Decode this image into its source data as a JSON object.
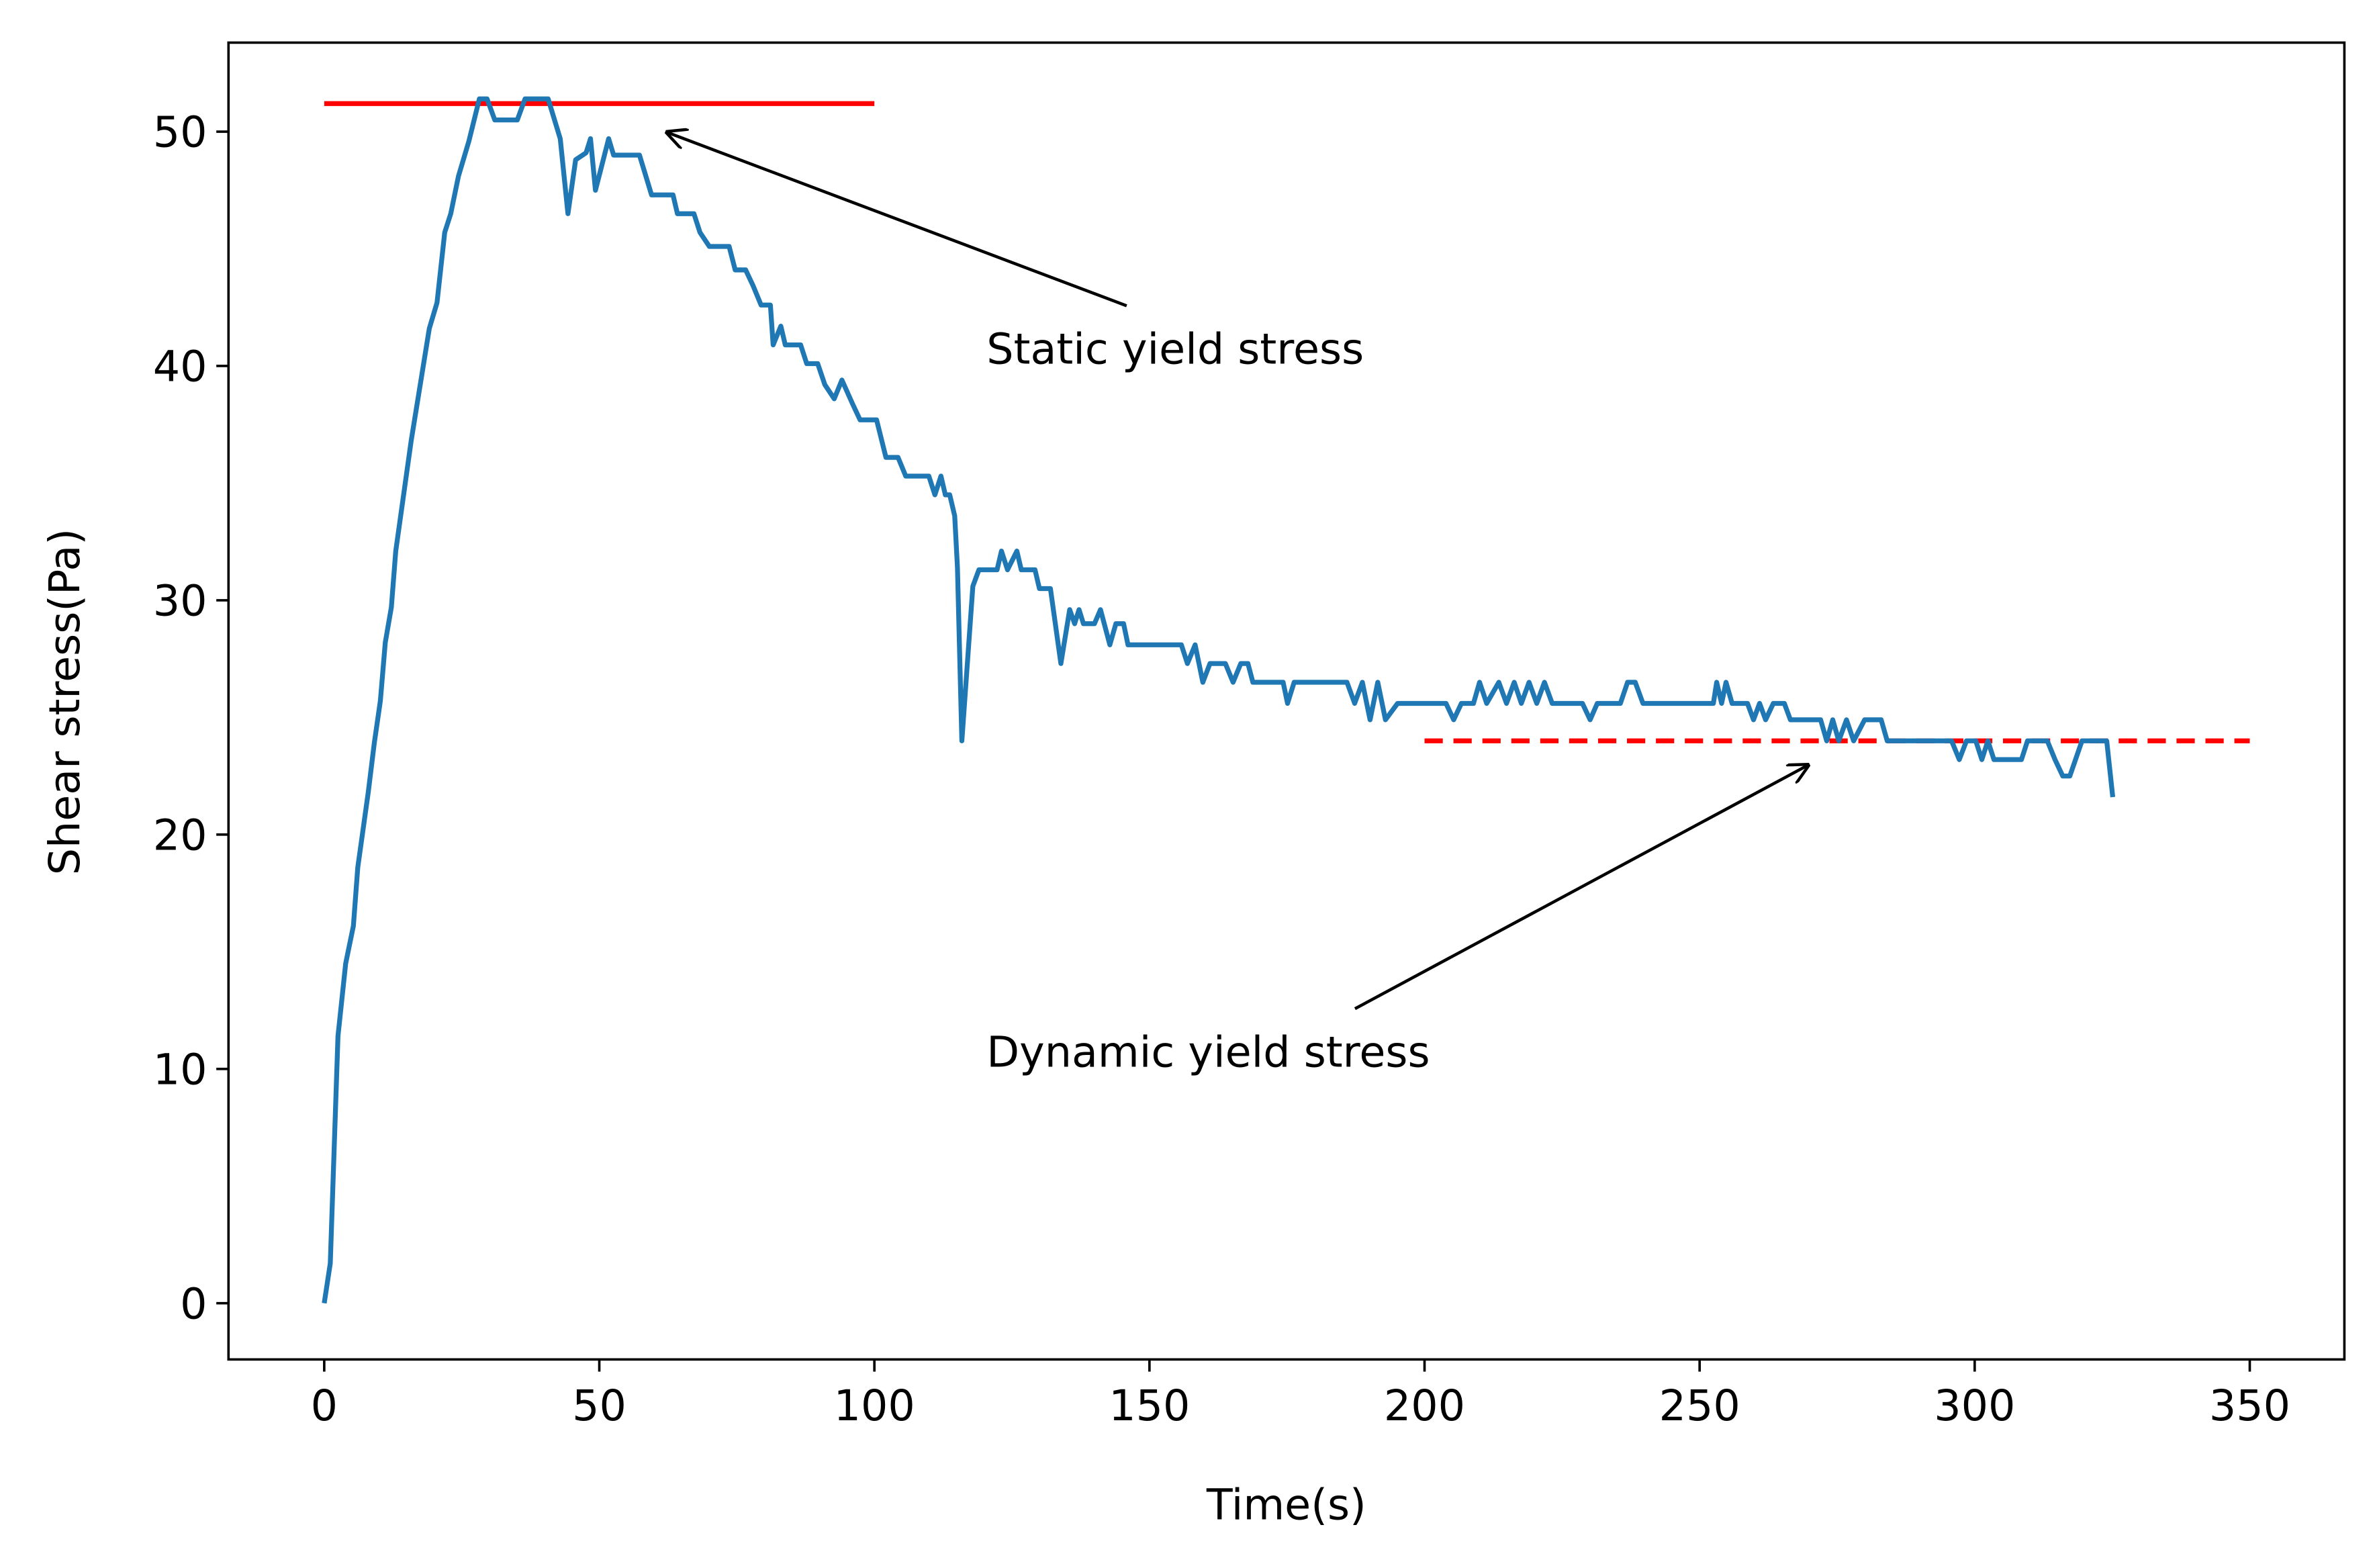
{
  "chart_data": {
    "type": "line",
    "xlabel": "Time(s)",
    "ylabel": "Shear stress(Pa)",
    "xlim": [
      -17.4,
      367.2
    ],
    "ylim": [
      -2.4,
      53.8
    ],
    "xticks": [
      0,
      50,
      100,
      150,
      200,
      250,
      300,
      350
    ],
    "yticks": [
      0,
      10,
      20,
      30,
      40,
      50
    ],
    "series": [
      {
        "color": "#1f77b4",
        "x": [
          0,
          1.1,
          2.5,
          3.9,
          5.3,
          6.1,
          8,
          9.1,
          10.2,
          11.1,
          12.2,
          13,
          15.8,
          19.1,
          20.5,
          21.9,
          23,
          24.4,
          26.3,
          28.2,
          29.6,
          31,
          35.1,
          36.5,
          40.7,
          42.9,
          44.3,
          45.7,
          47.6,
          48.4,
          49.3,
          51.7,
          52.6,
          57.3,
          59.5,
          63.4,
          64.2,
          67.2,
          68.3,
          70,
          73.6,
          74.7,
          76.6,
          78,
          79.4,
          81.1,
          81.6,
          83,
          83.8,
          86.6,
          87.7,
          89.7,
          91,
          92.7,
          94.1,
          96,
          97.4,
          100.4,
          102.1,
          104.3,
          105.7,
          109.9,
          111,
          112.1,
          112.9,
          113.7,
          114.6,
          115.1,
          115.9,
          117.9,
          119,
          122.3,
          123.1,
          124.2,
          125.9,
          126.7,
          129.2,
          130,
          132,
          133.9,
          135.5,
          136.4,
          137.2,
          138,
          140,
          141.1,
          142.8,
          143.9,
          145.3,
          146.1,
          155.8,
          156.9,
          158.3,
          159.7,
          161,
          163.8,
          165.2,
          166.6,
          167.9,
          168.8,
          174.3,
          175.1,
          176.3,
          185.9,
          187.3,
          188.7,
          190.1,
          191.5,
          192.9,
          195.1,
          203.9,
          205.3,
          206.7,
          208.9,
          210,
          211.3,
          213.5,
          214.9,
          216.3,
          217.6,
          219,
          220.4,
          221.8,
          223.2,
          228.7,
          230.1,
          231.4,
          235.6,
          236.9,
          238.3,
          239.7,
          252.5,
          253.1,
          254,
          254.8,
          255.9,
          258.7,
          259.8,
          260.9,
          262,
          263.4,
          265.4,
          266.5,
          272,
          273.1,
          274.2,
          275.3,
          276.7,
          278,
          280,
          283,
          284.1,
          295.8,
          297.2,
          298.5,
          300.2,
          301.3,
          302.4,
          303.5,
          308.5,
          309.6,
          313.2,
          314.6,
          316,
          317.3,
          319.5,
          324,
          325.1
        ],
        "values": [
          0,
          1.7,
          11.4,
          14.5,
          16.1,
          18.6,
          21.8,
          23.9,
          25.7,
          28.2,
          29.7,
          32.1,
          36.8,
          41.6,
          42.7,
          45.7,
          46.5,
          48.1,
          49.6,
          51.4,
          51.4,
          50.5,
          50.5,
          51.4,
          51.4,
          49.7,
          46.5,
          48.8,
          49.1,
          49.7,
          47.5,
          49.7,
          49,
          49,
          47.3,
          47.3,
          46.5,
          46.5,
          45.7,
          45.1,
          45.1,
          44.1,
          44.1,
          43.4,
          42.6,
          42.6,
          40.9,
          41.7,
          40.9,
          40.9,
          40.1,
          40.1,
          39.2,
          38.6,
          39.4,
          38.4,
          37.7,
          37.7,
          36.1,
          36.1,
          35.3,
          35.3,
          34.5,
          35.3,
          34.5,
          34.5,
          33.6,
          31.4,
          24,
          30.6,
          31.3,
          31.3,
          32.1,
          31.3,
          32.1,
          31.3,
          31.3,
          30.5,
          30.5,
          27.3,
          29.6,
          29,
          29.6,
          29,
          29,
          29.6,
          28.1,
          29,
          29,
          28.1,
          28.1,
          27.3,
          28.1,
          26.5,
          27.3,
          27.3,
          26.5,
          27.3,
          27.3,
          26.5,
          26.5,
          25.6,
          26.5,
          26.5,
          25.6,
          26.5,
          24.9,
          26.5,
          24.9,
          25.6,
          25.6,
          24.9,
          25.6,
          25.6,
          26.5,
          25.6,
          26.5,
          25.6,
          26.5,
          25.6,
          26.5,
          25.6,
          26.5,
          25.6,
          25.6,
          24.9,
          25.6,
          25.6,
          26.5,
          26.5,
          25.6,
          25.6,
          26.5,
          25.6,
          26.5,
          25.6,
          25.6,
          24.9,
          25.6,
          24.9,
          25.6,
          25.6,
          24.9,
          24.9,
          24,
          24.9,
          24,
          24.9,
          24,
          24.9,
          24.9,
          24,
          24,
          23.2,
          24,
          24,
          23.2,
          24,
          23.2,
          23.2,
          24,
          24,
          23.2,
          22.5,
          22.5,
          24,
          24,
          21.6
        ]
      }
    ],
    "hlines": [
      {
        "y": 51.2,
        "x": [
          0,
          100
        ],
        "color": "#ff0000",
        "style": "solid"
      },
      {
        "y": 24,
        "x": [
          200,
          350
        ],
        "color": "#ff0000",
        "style": "dashed"
      }
    ],
    "annotations": [
      {
        "text": "Static yield stress",
        "xy": [
          62,
          50
        ],
        "xytext": [
          120.4,
          40.1
        ]
      },
      {
        "text": "Dynamic yield stress",
        "xy": [
          270,
          23
        ],
        "xytext": [
          120.4,
          10.1
        ]
      }
    ]
  }
}
